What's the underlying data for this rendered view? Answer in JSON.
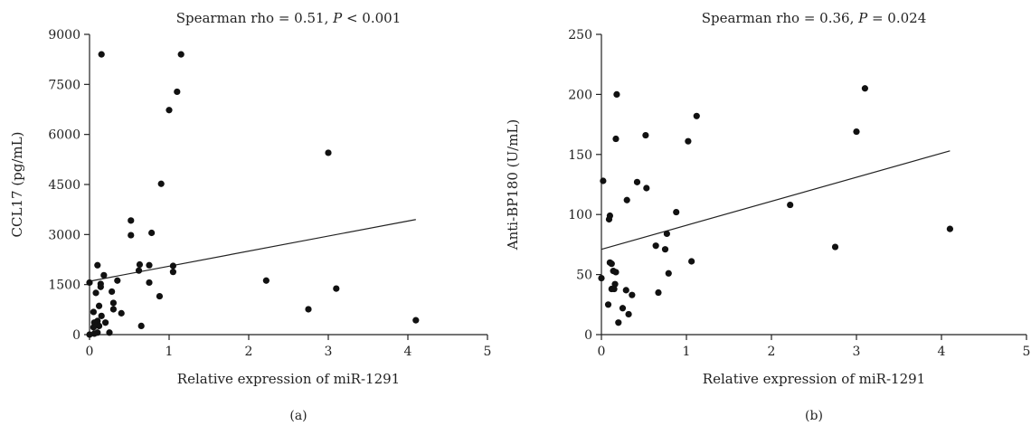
{
  "chart_data": [
    {
      "type": "scatter",
      "panel_label": "(a)",
      "title_prefix": "Spearman rho = 0.51, ",
      "title_p_symbol": "P",
      "title_p_value": " < 0.001",
      "xlabel": "Relative expression of miR-1291",
      "ylabel": "CCL17 (pg/mL)",
      "xlim": [
        0,
        5
      ],
      "ylim": [
        0,
        9000
      ],
      "xticks": [
        0,
        1,
        2,
        3,
        4,
        5
      ],
      "yticks": [
        0,
        1500,
        3000,
        4500,
        6000,
        7500,
        9000
      ],
      "fit_line": [
        [
          0,
          1600
        ],
        [
          4.1,
          3450
        ]
      ],
      "points": [
        [
          0.15,
          8400
        ],
        [
          1.15,
          8400
        ],
        [
          1.1,
          7280
        ],
        [
          1.0,
          6730
        ],
        [
          0.9,
          4520
        ],
        [
          3.0,
          5450
        ],
        [
          0.52,
          3420
        ],
        [
          0.52,
          2980
        ],
        [
          0.78,
          3050
        ],
        [
          0.1,
          2080
        ],
        [
          0.63,
          2100
        ],
        [
          0.75,
          2080
        ],
        [
          1.05,
          2060
        ],
        [
          1.05,
          1880
        ],
        [
          0.62,
          1920
        ],
        [
          0.18,
          1780
        ],
        [
          0.0,
          1560
        ],
        [
          0.14,
          1520
        ],
        [
          0.14,
          1430
        ],
        [
          0.35,
          1620
        ],
        [
          0.75,
          1560
        ],
        [
          2.22,
          1620
        ],
        [
          0.28,
          1290
        ],
        [
          0.08,
          1250
        ],
        [
          0.88,
          1150
        ],
        [
          3.1,
          1380
        ],
        [
          0.3,
          950
        ],
        [
          0.12,
          860
        ],
        [
          0.3,
          760
        ],
        [
          0.4,
          640
        ],
        [
          0.05,
          680
        ],
        [
          0.15,
          560
        ],
        [
          0.1,
          410
        ],
        [
          0.06,
          360
        ],
        [
          0.2,
          360
        ],
        [
          0.12,
          260
        ],
        [
          0.05,
          220
        ],
        [
          0.65,
          260
        ],
        [
          2.75,
          760
        ],
        [
          4.1,
          430
        ],
        [
          0.25,
          60
        ],
        [
          0.1,
          60
        ],
        [
          0.0,
          0
        ],
        [
          0.06,
          30
        ]
      ]
    },
    {
      "type": "scatter",
      "panel_label": "(b)",
      "title_prefix": "Spearman rho = 0.36, ",
      "title_p_symbol": "P",
      "title_p_value": " = 0.024",
      "xlabel": "Relative expression of miR-1291",
      "ylabel": "Anti-BP180 (U/mL)",
      "xlim": [
        0,
        5
      ],
      "ylim": [
        0,
        250
      ],
      "xticks": [
        0,
        1,
        2,
        3,
        4,
        5
      ],
      "yticks": [
        0,
        50,
        100,
        150,
        200,
        250
      ],
      "fit_line": [
        [
          0,
          71
        ],
        [
          4.1,
          153
        ]
      ],
      "points": [
        [
          0.18,
          200
        ],
        [
          3.1,
          205
        ],
        [
          1.12,
          182
        ],
        [
          3.0,
          169
        ],
        [
          0.52,
          166
        ],
        [
          0.17,
          163
        ],
        [
          1.02,
          161
        ],
        [
          0.02,
          128
        ],
        [
          0.42,
          127
        ],
        [
          0.53,
          122
        ],
        [
          0.3,
          112
        ],
        [
          2.22,
          108
        ],
        [
          0.88,
          102
        ],
        [
          0.1,
          99
        ],
        [
          0.09,
          96
        ],
        [
          4.1,
          88
        ],
        [
          0.77,
          84
        ],
        [
          0.64,
          74
        ],
        [
          2.75,
          73
        ],
        [
          0.75,
          71
        ],
        [
          1.06,
          61
        ],
        [
          0.1,
          60
        ],
        [
          0.12,
          59
        ],
        [
          0.14,
          53
        ],
        [
          0.17,
          52
        ],
        [
          0.79,
          51
        ],
        [
          0.0,
          47
        ],
        [
          0.16,
          42
        ],
        [
          0.12,
          38
        ],
        [
          0.15,
          38
        ],
        [
          0.29,
          37
        ],
        [
          0.67,
          35
        ],
        [
          0.36,
          33
        ],
        [
          0.08,
          25
        ],
        [
          0.25,
          22
        ],
        [
          0.32,
          17
        ],
        [
          0.2,
          10
        ]
      ]
    }
  ]
}
